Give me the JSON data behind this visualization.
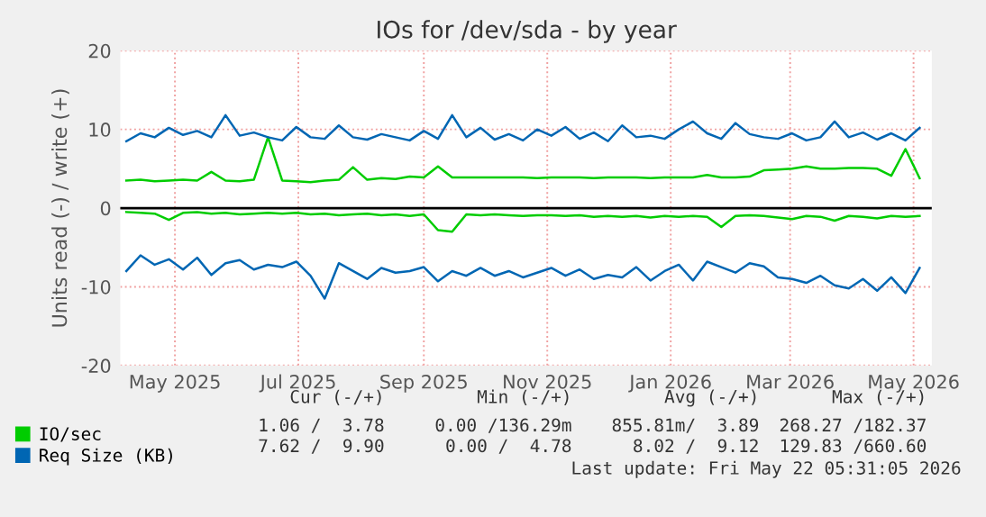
{
  "chart_data": {
    "type": "line",
    "title": "IOs for /dev/sda - by year",
    "ylabel": "Units read (-) / write (+)",
    "x": [
      "2025-04-21",
      "2025-04-28",
      "2025-05-05",
      "2025-05-12",
      "2025-05-19",
      "2025-05-26",
      "2025-06-02",
      "2025-06-09",
      "2025-06-16",
      "2025-06-23",
      "2025-06-30",
      "2025-07-07",
      "2025-07-14",
      "2025-07-21",
      "2025-07-28",
      "2025-08-04",
      "2025-08-11",
      "2025-08-18",
      "2025-08-25",
      "2025-09-01",
      "2025-09-08",
      "2025-09-15",
      "2025-09-22",
      "2025-09-29",
      "2025-10-06",
      "2025-10-13",
      "2025-10-20",
      "2025-10-27",
      "2025-11-03",
      "2025-11-10",
      "2025-11-17",
      "2025-11-24",
      "2025-12-01",
      "2025-12-08",
      "2025-12-15",
      "2025-12-22",
      "2025-12-29",
      "2026-01-05",
      "2026-01-12",
      "2026-01-19",
      "2026-01-26",
      "2026-02-02",
      "2026-02-09",
      "2026-02-16",
      "2026-02-23",
      "2026-03-02",
      "2026-03-09",
      "2026-03-16",
      "2026-03-23",
      "2026-03-30",
      "2026-04-06",
      "2026-04-13",
      "2026-04-20",
      "2026-04-27",
      "2026-05-04",
      "2026-05-11",
      "2026-05-18"
    ],
    "series": [
      {
        "name": "IO/sec",
        "color": "#00cc00",
        "values": [
          3.5,
          3.6,
          3.4,
          3.5,
          3.6,
          3.5,
          4.6,
          3.5,
          3.4,
          3.6,
          9.0,
          3.5,
          3.4,
          3.3,
          3.5,
          3.6,
          5.2,
          3.6,
          3.8,
          3.7,
          4.0,
          3.9,
          5.3,
          3.9,
          3.9,
          3.9,
          3.9,
          3.9,
          3.9,
          3.8,
          3.9,
          3.9,
          3.9,
          3.8,
          3.9,
          3.9,
          3.9,
          3.8,
          3.9,
          3.9,
          3.9,
          4.2,
          3.9,
          3.9,
          4.0,
          4.8,
          4.9,
          5.0,
          5.3,
          5.0,
          5.0,
          5.1,
          5.1,
          5.0,
          4.1,
          7.5,
          3.8
        ]
      },
      {
        "color": "#00cc00",
        "values": [
          -0.5,
          -0.6,
          -0.7,
          -1.5,
          -0.6,
          -0.5,
          -0.7,
          -0.6,
          -0.8,
          -0.7,
          -0.6,
          -0.7,
          -0.6,
          -0.8,
          -0.7,
          -0.9,
          -0.8,
          -0.7,
          -0.9,
          -0.8,
          -1.0,
          -0.8,
          -2.8,
          -3.0,
          -0.8,
          -0.9,
          -0.8,
          -0.9,
          -1.0,
          -0.9,
          -0.9,
          -1.0,
          -0.9,
          -1.1,
          -1.0,
          -1.1,
          -1.0,
          -1.2,
          -1.0,
          -1.1,
          -1.0,
          -1.1,
          -2.4,
          -1.0,
          -0.9,
          -1.0,
          -1.2,
          -1.4,
          -1.0,
          -1.1,
          -1.6,
          -1.0,
          -1.1,
          -1.3,
          -1.0,
          -1.1,
          -1.0
        ]
      },
      {
        "name": "Req Size (KB)",
        "color": "#0066b3",
        "values": [
          8.5,
          9.5,
          9.0,
          10.2,
          9.3,
          9.8,
          9.0,
          11.8,
          9.2,
          9.6,
          9.0,
          8.6,
          10.3,
          9.0,
          8.8,
          10.5,
          9.0,
          8.7,
          9.4,
          9.0,
          8.6,
          9.8,
          8.8,
          11.8,
          9.0,
          10.2,
          8.7,
          9.4,
          8.6,
          10.0,
          9.2,
          10.3,
          8.8,
          9.6,
          8.5,
          10.5,
          9.0,
          9.2,
          8.8,
          10.0,
          11.0,
          9.5,
          8.8,
          10.8,
          9.4,
          9.0,
          8.8,
          9.5,
          8.6,
          9.0,
          11.0,
          9.0,
          9.6,
          8.7,
          9.5,
          8.6,
          10.2
        ]
      },
      {
        "color": "#0066b3",
        "values": [
          -8.0,
          -6.0,
          -7.2,
          -6.5,
          -7.8,
          -6.3,
          -8.5,
          -7.0,
          -6.6,
          -7.8,
          -7.2,
          -7.5,
          -6.8,
          -8.6,
          -11.5,
          -7.0,
          -8.0,
          -9.0,
          -7.6,
          -8.2,
          -8.0,
          -7.5,
          -9.3,
          -8.0,
          -8.6,
          -7.6,
          -8.6,
          -8.0,
          -8.8,
          -8.2,
          -7.6,
          -8.6,
          -7.8,
          -9.0,
          -8.5,
          -8.8,
          -7.5,
          -9.2,
          -8.0,
          -7.2,
          -9.2,
          -6.8,
          -7.5,
          -8.2,
          -7.0,
          -7.4,
          -8.8,
          -9.0,
          -9.5,
          -8.6,
          -9.8,
          -10.2,
          -9.0,
          -10.5,
          -8.8,
          -10.8,
          -7.6
        ]
      }
    ],
    "xlim": [
      "2025-04-18",
      "2026-05-24"
    ],
    "xticks": [
      {
        "value": "2025-05-15",
        "label": "May 2025"
      },
      {
        "value": "2025-07-15",
        "label": "Jul 2025"
      },
      {
        "value": "2025-09-15",
        "label": "Sep 2025"
      },
      {
        "value": "2025-11-15",
        "label": "Nov 2025"
      },
      {
        "value": "2026-01-15",
        "label": "Jan 2026"
      },
      {
        "value": "2026-03-15",
        "label": "Mar 2026"
      },
      {
        "value": "2026-05-15",
        "label": "May 2026"
      }
    ],
    "ylim": [
      -20,
      20
    ],
    "yticks": [
      -20,
      -10,
      0,
      10,
      20
    ],
    "ref_lines": [
      {
        "axis": "y",
        "value": 0,
        "color": "#000000"
      }
    ],
    "grid": true,
    "legend": "bottom left",
    "line_style": "solid",
    "marker": "none",
    "annotations": [
      "Cur (-/+)",
      "Min (-/+)",
      "Avg (-/+)",
      "Max (-/+)",
      "1.06 /  3.78",
      "0.00 /136.29m",
      "855.81m/  3.89",
      "268.27 /182.37",
      "7.62 /  9.90",
      "0.00 /  4.78",
      "8.02 /  9.12",
      "129.83 /660.60",
      "Last update: Fri May 22 05:31:05 2026"
    ]
  }
}
